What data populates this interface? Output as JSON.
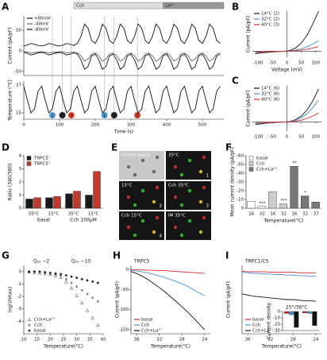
{
  "chart_data": [
    {
      "type": "line",
      "panel": "A",
      "ylabel": "Current (pA/pF)",
      "xlim": [
        0,
        560
      ],
      "ylim": [
        -60,
        85
      ],
      "yticks": [
        50,
        0,
        -50
      ],
      "legend": "upper left",
      "bars": [
        {
          "label": "Cch",
          "start": 140,
          "end": 390,
          "color": "#dddddd"
        },
        {
          "label": "La³⁺",
          "start": 390,
          "end": 560,
          "color": "#999999"
        }
      ],
      "x": [
        0,
        10,
        20,
        30,
        40,
        50,
        60,
        70,
        80,
        90,
        100,
        110,
        120,
        130,
        140,
        150,
        160,
        170,
        180,
        190,
        200,
        210,
        220,
        230,
        240,
        250,
        260,
        270,
        280,
        290,
        300,
        310,
        320,
        330,
        340,
        350,
        360,
        370,
        380,
        390,
        400,
        410,
        420,
        430,
        440,
        450,
        460,
        470,
        480,
        490,
        500,
        510,
        520,
        530,
        540,
        550
      ],
      "series": [
        {
          "name": "+80mV",
          "color": "#111111",
          "values": [
            12,
            14,
            18,
            16,
            13,
            12,
            14,
            18,
            16,
            13,
            12,
            14,
            18,
            16,
            13,
            18,
            35,
            65,
            55,
            25,
            18,
            35,
            65,
            55,
            25,
            18,
            35,
            65,
            55,
            25,
            18,
            35,
            65,
            55,
            25,
            18,
            35,
            65,
            55,
            25,
            18,
            35,
            65,
            55,
            25,
            18,
            35,
            65,
            55,
            25,
            18,
            35,
            65,
            55,
            25,
            18
          ]
        },
        {
          "name": "-40mV",
          "color": "#666666",
          "values": [
            -2,
            -3,
            -5,
            -4,
            -3,
            -2,
            -3,
            -5,
            -4,
            -3,
            -2,
            -3,
            -5,
            -4,
            -3,
            -5,
            -12,
            -25,
            -20,
            -8,
            -5,
            -12,
            -25,
            -20,
            -8,
            -5,
            -12,
            -25,
            -20,
            -8,
            -5,
            -12,
            -25,
            -20,
            -8,
            -5,
            -12,
            -25,
            -20,
            -8,
            -5,
            -12,
            -25,
            -20,
            -8,
            -5,
            -12,
            -25,
            -20,
            -8,
            -5,
            -12,
            -25,
            -20,
            -8,
            -5
          ]
        },
        {
          "name": "-80mV",
          "color": "#111111",
          "values": [
            -4,
            -6,
            -10,
            -8,
            -5,
            -4,
            -6,
            -10,
            -8,
            -5,
            -4,
            -6,
            -10,
            -8,
            -5,
            -8,
            -22,
            -45,
            -38,
            -12,
            -8,
            -22,
            -45,
            -38,
            -12,
            -8,
            -22,
            -45,
            -38,
            -12,
            -8,
            -22,
            -45,
            -38,
            -12,
            -8,
            -22,
            -45,
            -38,
            -12,
            -8,
            -22,
            -45,
            -38,
            -12,
            -8,
            -22,
            -45,
            -38,
            -12,
            -8,
            -22,
            -45,
            -38,
            -12,
            -8
          ]
        }
      ]
    },
    {
      "type": "line",
      "ylabel": "Temperature (°C)",
      "xlabel": "Time (s)",
      "xlim": [
        0,
        560
      ],
      "ylim": [
        10,
        40
      ],
      "xticks": [
        0,
        100,
        200,
        300,
        400,
        500
      ],
      "yticks": [
        37,
        15
      ],
      "markers": [
        {
          "x": 80,
          "label": "1",
          "color": "#4a9ad4"
        },
        {
          "x": 108,
          "label": "2",
          "color": "#222222"
        },
        {
          "x": 133,
          "label": "3",
          "color": "#d9412b"
        },
        {
          "x": 226,
          "label": "1",
          "color": "#4a9ad4"
        },
        {
          "x": 253,
          "label": "2",
          "color": "#222222"
        },
        {
          "x": 318,
          "label": "3",
          "color": "#d9412b"
        }
      ],
      "x": [
        0,
        10,
        20,
        30,
        40,
        50,
        60,
        70,
        80,
        90,
        100,
        110,
        120,
        130,
        140,
        150,
        160,
        170,
        180,
        190,
        200,
        210,
        220,
        230,
        240,
        250,
        260,
        270,
        280,
        290,
        300,
        310,
        320,
        330,
        340,
        350,
        360,
        370,
        380,
        390,
        400,
        410,
        420,
        430,
        440,
        450,
        460,
        470,
        480,
        490,
        500,
        510,
        520,
        530,
        540,
        550
      ],
      "series": [
        {
          "color": "#111111",
          "values": [
            36,
            25,
            15,
            18,
            32,
            36,
            25,
            15,
            18,
            32,
            36,
            25,
            15,
            18,
            32,
            36,
            25,
            15,
            18,
            32,
            36,
            25,
            15,
            18,
            32,
            36,
            25,
            15,
            18,
            32,
            36,
            25,
            15,
            18,
            32,
            36,
            25,
            15,
            18,
            32,
            36,
            25,
            15,
            18,
            32,
            36,
            25,
            15,
            18,
            32,
            36,
            25,
            15,
            18,
            32,
            36
          ]
        }
      ]
    },
    {
      "type": "line",
      "panel": "B",
      "ylabel": "Current (pA/pF)",
      "xlabel": "Voltage (mV)",
      "xlim": [
        -120,
        120
      ],
      "ylim": [
        -15,
        100
      ],
      "xticks": [
        -100,
        -50,
        0,
        50,
        100
      ],
      "origin_axes": true,
      "legend": "upper left",
      "x": [
        -110,
        -90,
        -70,
        -50,
        -30,
        -10,
        10,
        30,
        50,
        70,
        90,
        110
      ],
      "series": [
        {
          "name": "14°C (2)",
          "color": "#111111",
          "values": [
            -6,
            -4,
            -3,
            -2,
            -1,
            0,
            2,
            8,
            20,
            40,
            68,
            100
          ]
        },
        {
          "name": "32°C (2)",
          "color": "#4a90d9",
          "values": [
            -3,
            -2,
            -1.5,
            -1,
            -0.5,
            0,
            1,
            3,
            6,
            11,
            18,
            26
          ]
        },
        {
          "name": "40°C (3)",
          "color": "#d62728",
          "values": [
            -2,
            -1.5,
            -1,
            -0.5,
            -0.3,
            0,
            0.5,
            1.5,
            3,
            5,
            8,
            12
          ]
        }
      ]
    },
    {
      "type": "line",
      "panel": "C",
      "ylabel": "Current (pA/pF)",
      "xlim": [
        -120,
        120
      ],
      "ylim": [
        -15,
        60
      ],
      "xticks": [
        -100,
        -50,
        0,
        50,
        100
      ],
      "origin_axes": true,
      "legend": "upper left",
      "x": [
        -110,
        -90,
        -70,
        -50,
        -30,
        -10,
        10,
        30,
        50,
        70,
        90,
        110
      ],
      "series": [
        {
          "name": "14°C (6)",
          "color": "#111111",
          "values": [
            -4,
            -3,
            -2,
            -1,
            -0.5,
            0,
            1,
            4,
            10,
            20,
            35,
            55
          ]
        },
        {
          "name": "32°C (6)",
          "color": "#4a90d9",
          "values": [
            -3,
            -2,
            -1.5,
            -1,
            -0.5,
            0,
            1,
            3,
            7,
            14,
            24,
            36
          ]
        },
        {
          "name": "40°C (6)",
          "color": "#d62728",
          "values": [
            -2,
            -1.5,
            -1,
            -0.5,
            -0.3,
            0,
            0.5,
            1.5,
            3,
            6,
            10,
            15
          ]
        }
      ]
    },
    {
      "type": "bar",
      "panel": "D",
      "ylabel": "Ratio (340/380)",
      "ylim": [
        0,
        4
      ],
      "yticks": [
        0,
        1,
        2,
        3,
        4
      ],
      "legend": "upper left",
      "categories": [
        "35°C",
        "15°C",
        "35°C",
        "15°C"
      ],
      "groups": [
        "basal",
        "Cch 100µM"
      ],
      "bar_labels": [
        "1",
        "2",
        "3",
        "4"
      ],
      "series": [
        {
          "name": "TRPC5⁻",
          "color": "#1a1a1a",
          "values": [
            0.7,
            0.8,
            1.1,
            1.0
          ]
        },
        {
          "name": "TRPC5⁺",
          "color": "#c0392b",
          "values": [
            0.8,
            0.9,
            1.3,
            2.8
          ]
        }
      ]
    },
    {
      "type": "bar",
      "panel": "F",
      "ylabel": "Mean current density (pA/pF)",
      "xlabel": "Temperature(°C)",
      "ylim": [
        0,
        -60
      ],
      "yticks": [
        0,
        -10,
        -20,
        -30,
        -40,
        -50,
        -60
      ],
      "legend": "upper left",
      "categories": [
        "16",
        "32",
        "16",
        "32",
        "16",
        "32",
        "37"
      ],
      "significance": [
        null,
        "***",
        null,
        "***",
        "**",
        "*",
        null
      ],
      "series": [
        {
          "name": "basal",
          "color": "#ffffff",
          "values": [
            -8,
            -2,
            null,
            null,
            null,
            null,
            null
          ]
        },
        {
          "name": "Cch",
          "color": "#cccccc",
          "values": [
            null,
            null,
            -19,
            -5,
            null,
            null,
            null
          ]
        },
        {
          "name": "Cch+La³⁺",
          "color": "#777777",
          "values": [
            null,
            null,
            null,
            null,
            -48,
            -14,
            -7
          ]
        }
      ]
    },
    {
      "type": "scatter",
      "panel": "G",
      "ylabel": "log(I/Imax)",
      "xlabel": "Temperature(°C)",
      "xlim": [
        10,
        40
      ],
      "ylim": [
        -5,
        0.5
      ],
      "xticks": [
        10,
        15,
        20,
        25,
        30,
        35,
        40
      ],
      "yticks": [
        0,
        -1,
        -2,
        -3,
        -4
      ],
      "legend": "lower left",
      "annotations": [
        "Q₁₀ ~2",
        "Q₁₀ ~10"
      ],
      "x": [
        12,
        14,
        16,
        18,
        20,
        22,
        24,
        26,
        28,
        30,
        32,
        34,
        36,
        38
      ],
      "series": [
        {
          "name": "Cch+La³⁺",
          "color": "#444444",
          "marker": "triangle",
          "values": [
            0,
            -0.05,
            -0.1,
            -0.15,
            -0.2,
            -0.3,
            -0.45,
            -0.8,
            -1.3,
            -1.9,
            -2.5,
            -3.1,
            -3.7,
            -4.3
          ]
        },
        {
          "name": "Cch",
          "color": "#888888",
          "marker": "circle",
          "values": [
            0,
            0,
            -0.05,
            -0.1,
            -0.15,
            -0.25,
            -0.35,
            -0.6,
            -0.9,
            -1.2,
            -1.5,
            -1.8,
            -2.1,
            -2.4
          ]
        },
        {
          "name": "basal",
          "color": "#222222",
          "marker": "diamond",
          "values": [
            0,
            0,
            0,
            -0.05,
            -0.1,
            -0.15,
            -0.2,
            -0.3,
            -0.4,
            -0.5,
            -0.6,
            -0.7,
            -0.8,
            -0.9
          ]
        }
      ]
    },
    {
      "type": "line",
      "panel": "H",
      "title": "TRPC5",
      "ylabel": "Current (pA/pF)",
      "xlabel": "Temperature(°C)",
      "xlim": [
        37,
        23
      ],
      "ylim": [
        -160,
        10
      ],
      "xticks": [
        36,
        32,
        28,
        24
      ],
      "yticks": [
        0,
        -50,
        -100,
        -150
      ],
      "legend": "lower left",
      "x": [
        37,
        36,
        35,
        34,
        33,
        32,
        31,
        30,
        29,
        28,
        27,
        26,
        25,
        24
      ],
      "series": [
        {
          "name": "basal",
          "color": "#d62728",
          "values": [
            0,
            -1,
            -1,
            -2,
            -2,
            -3,
            -3,
            -4,
            -5,
            -6,
            -7,
            -8,
            -9,
            -10
          ]
        },
        {
          "name": "Cch",
          "color": "#4a90d9",
          "values": [
            -2,
            -4,
            -6,
            -9,
            -12,
            -16,
            -20,
            -25,
            -30,
            -36,
            -42,
            -50,
            -58,
            -65
          ]
        },
        {
          "name": "Cch+La³⁺",
          "color": "#111111",
          "values": [
            -5,
            -10,
            -17,
            -25,
            -35,
            -45,
            -56,
            -68,
            -80,
            -93,
            -106,
            -120,
            -135,
            -150
          ]
        }
      ]
    },
    {
      "type": "line",
      "panel": "I",
      "title": "TRPC1/C5",
      "ylabel": "Current (pA/pF)",
      "xlabel": "Temperature(°C)",
      "xlim": [
        37,
        23
      ],
      "ylim": [
        -110,
        10
      ],
      "xticks": [
        36,
        32,
        28,
        24
      ],
      "legend": "lower left",
      "x": [
        37,
        36,
        35,
        34,
        33,
        32,
        31,
        30,
        29,
        28,
        27,
        26,
        25,
        24
      ],
      "series": [
        {
          "name": "basal",
          "color": "#d62728",
          "values": [
            0,
            -1,
            -1,
            -1,
            -1,
            -2,
            -2,
            -2,
            -2,
            -2,
            -3,
            -3,
            -3,
            -3
          ]
        },
        {
          "name": "Cch",
          "color": "#4a90d9",
          "values": [
            -2,
            -3,
            -4,
            -4,
            -5,
            -5,
            -6,
            -6,
            -7,
            -7,
            -8,
            -8,
            -9,
            -9
          ]
        },
        {
          "name": "Cch+La³⁺",
          "color": "#111111",
          "values": [
            -40,
            -42,
            -44,
            -45,
            -46,
            -47,
            -48,
            -49,
            -50,
            -50,
            -51,
            -52,
            -52,
            -53
          ]
        }
      ]
    },
    {
      "type": "bar",
      "title": "25°/36°C",
      "ylabel": "Current density",
      "ylim": [
        -30,
        0
      ],
      "yticks": [
        0,
        -10,
        -20,
        -30
      ],
      "categories": [
        null,
        null
      ],
      "series": [
        {
          "color": "#d62728",
          "values": [
            -3,
            -2
          ]
        },
        {
          "color": "#4a90d9",
          "values": [
            -5,
            -3
          ]
        },
        {
          "color": "#111111",
          "values": [
            -25,
            -22
          ]
        }
      ]
    }
  ],
  "panel_E": {
    "panel": "E",
    "tiles": [
      [
        "Cherry signal"
      ],
      [
        "35°C",
        "1"
      ],
      [
        "15°C",
        "2"
      ],
      [
        "Cch 35°C",
        "3"
      ],
      [
        "Cch 15°C",
        "4"
      ],
      [
        "IM 35°C"
      ]
    ]
  }
}
